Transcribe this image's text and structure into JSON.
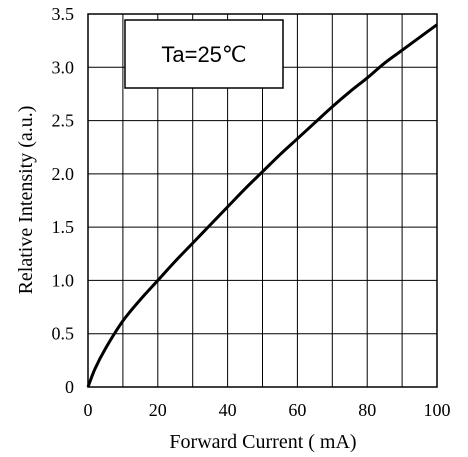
{
  "chart_data": {
    "type": "line",
    "title": "",
    "xlabel": "Forward Current ( mA)",
    "ylabel": "Relative Intensity  (a.u.)",
    "xlim": [
      0,
      100
    ],
    "ylim": [
      0,
      3.5
    ],
    "x_ticks": [
      0,
      20,
      40,
      60,
      80,
      100
    ],
    "y_ticks": [
      0,
      0.5,
      1.0,
      1.5,
      2.0,
      2.5,
      3.0,
      3.5
    ],
    "x_tick_labels": [
      "0",
      "20",
      "40",
      "60",
      "80",
      "100"
    ],
    "y_tick_labels": [
      "0",
      "0.5",
      "1.0",
      "1.5",
      "2.0",
      "2.5",
      "3.0",
      "3.5"
    ],
    "grid": true,
    "annotation": "Ta=25℃",
    "series": [
      {
        "x": [
          0,
          2,
          5,
          10,
          15,
          20,
          25,
          30,
          35,
          40,
          45,
          50,
          55,
          60,
          65,
          70,
          75,
          80,
          85,
          90,
          95,
          100
        ],
        "y": [
          0,
          0.17,
          0.36,
          0.62,
          0.82,
          1.0,
          1.18,
          1.35,
          1.52,
          1.69,
          1.86,
          2.02,
          2.18,
          2.33,
          2.48,
          2.63,
          2.77,
          2.9,
          3.04,
          3.16,
          3.28,
          3.4
        ]
      }
    ]
  }
}
